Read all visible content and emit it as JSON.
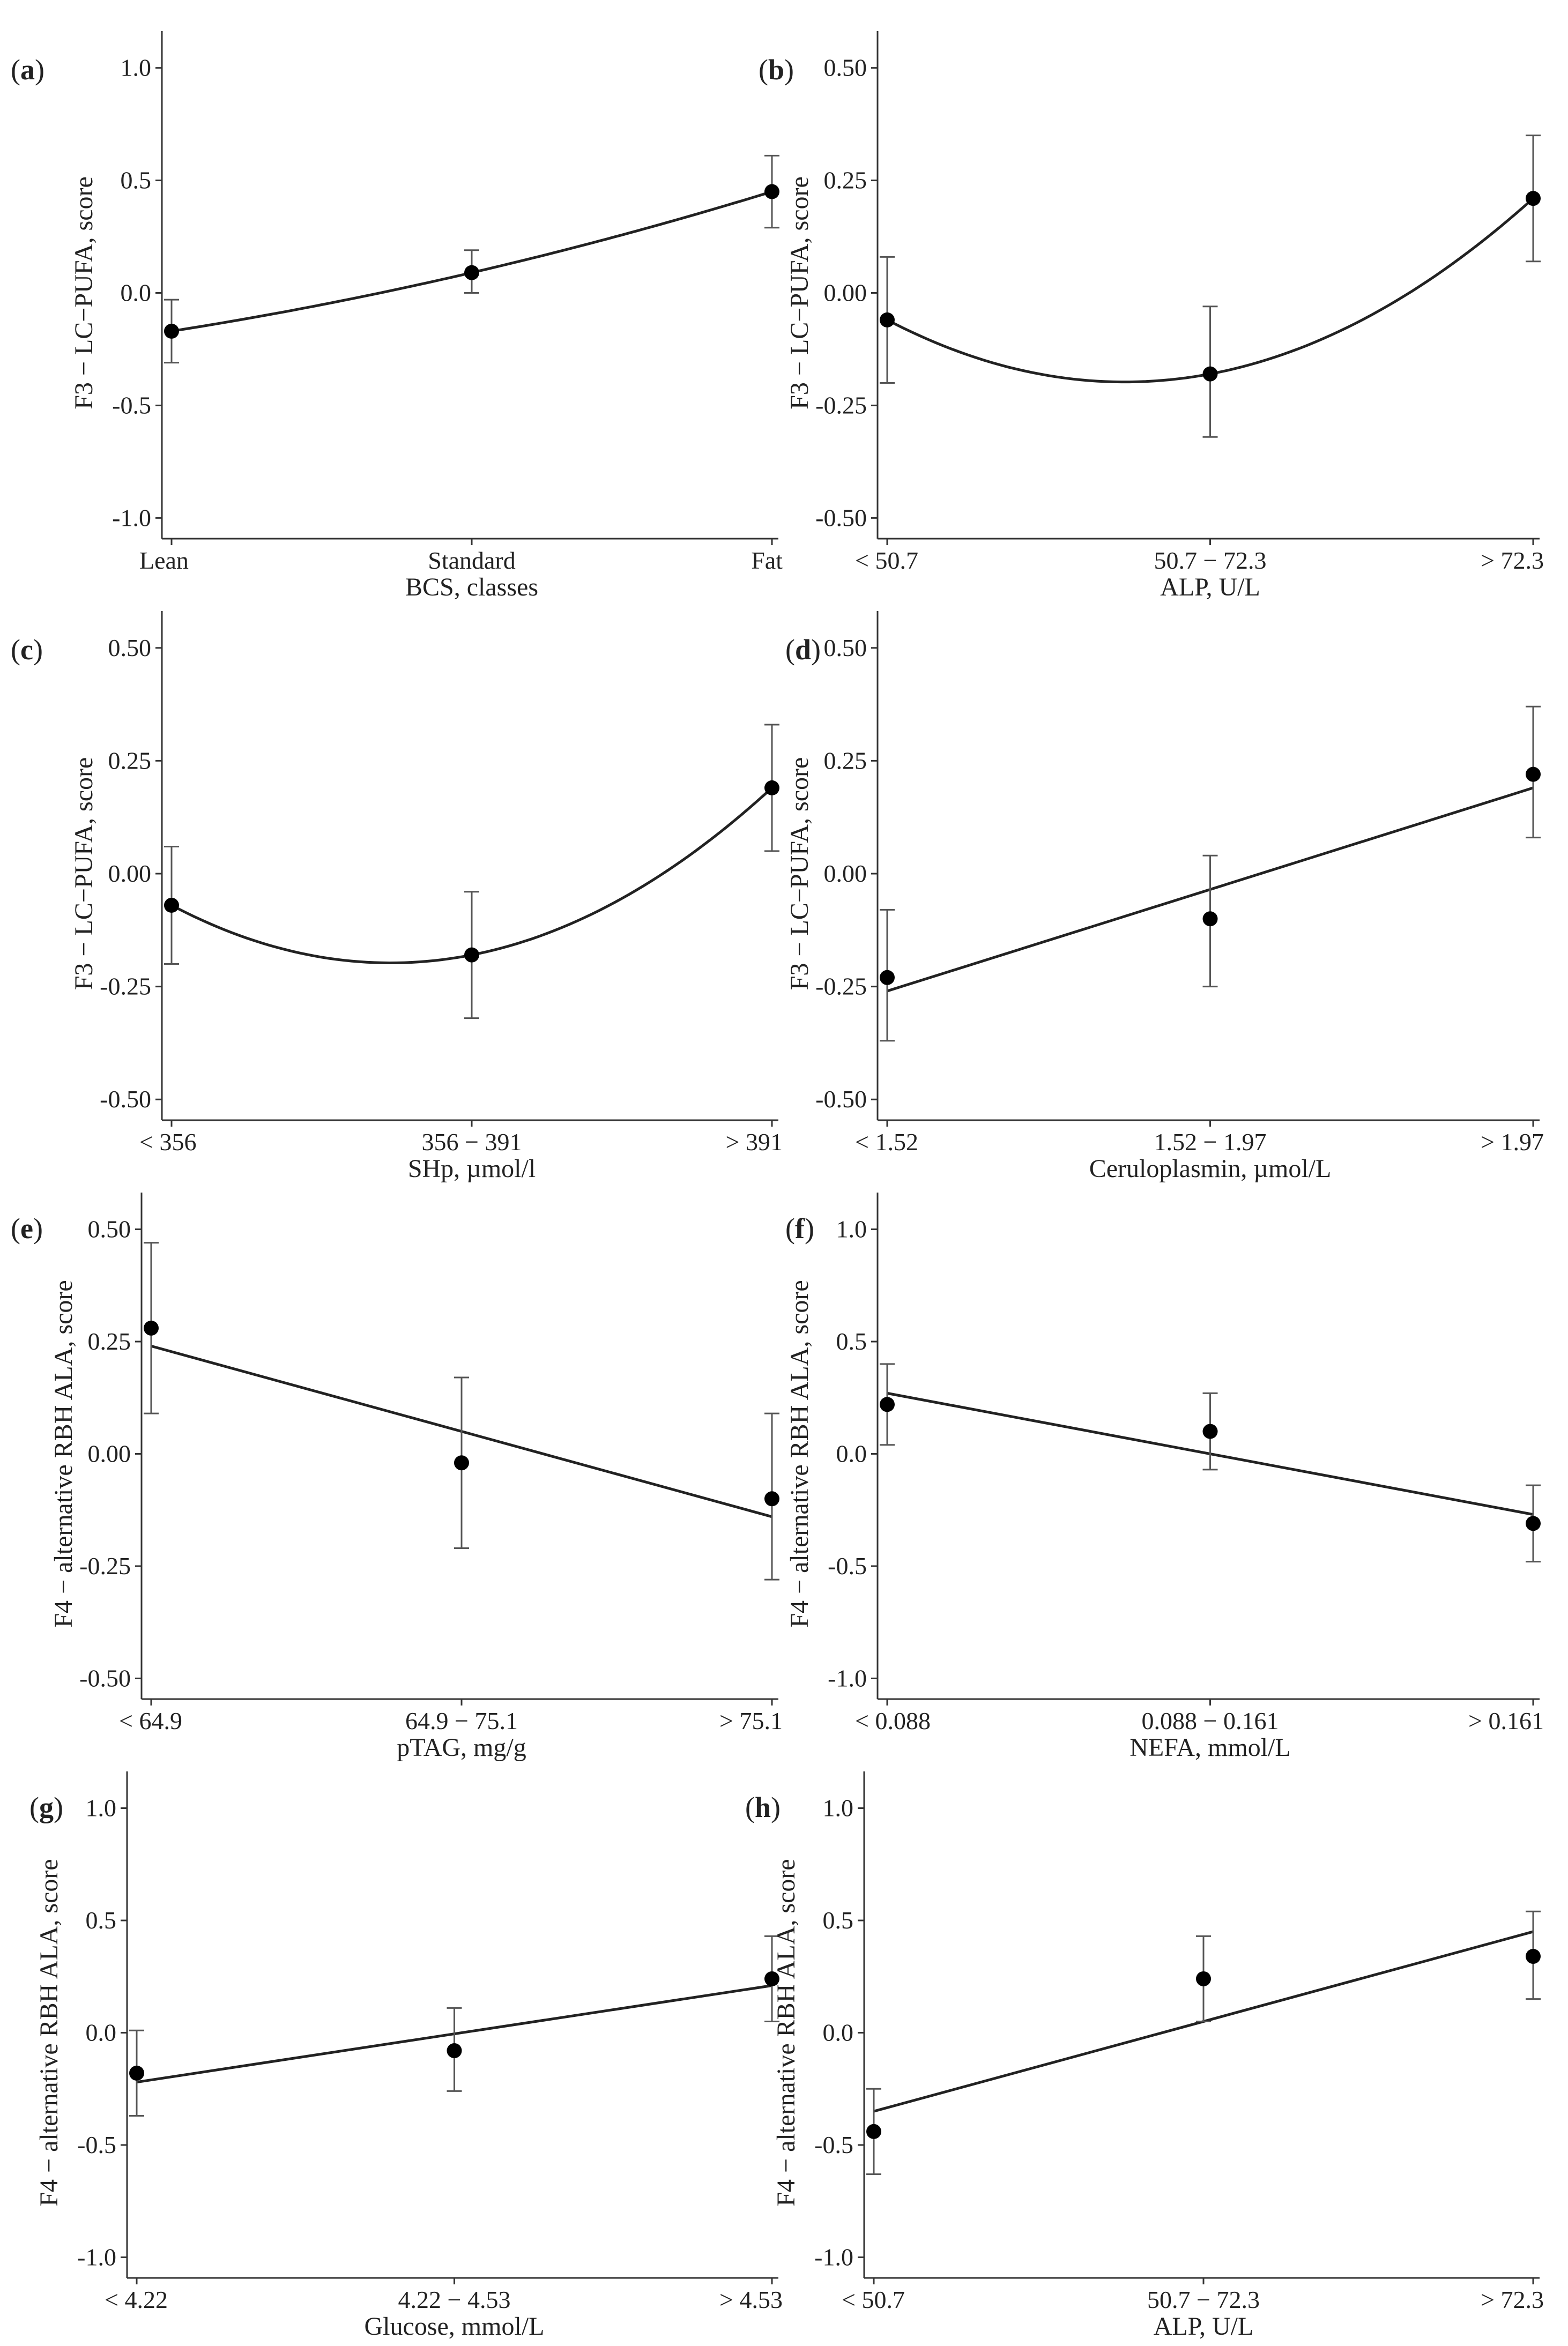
{
  "chart_data": [
    {
      "id": "a",
      "letter": "a",
      "type": "scatter",
      "fit": "quadratic",
      "categories": [
        "Lean",
        "Standard",
        "Fat"
      ],
      "xlabel": "BCS, classes",
      "ylabel": "F3 − LC−PUFA, score",
      "ylim": [
        -1.0,
        1.0
      ],
      "yticks": [
        1.0,
        0.5,
        0.0,
        -0.5,
        -1.0
      ],
      "ytick_labels": [
        "1.0",
        "0.5",
        "0.0",
        "-0.5",
        "-1.0"
      ],
      "points": [
        {
          "y": -0.17,
          "lo": -0.31,
          "hi": -0.03
        },
        {
          "y": 0.09,
          "lo": 0.0,
          "hi": 0.19
        },
        {
          "y": 0.45,
          "lo": 0.29,
          "hi": 0.61
        }
      ]
    },
    {
      "id": "b",
      "letter": "b",
      "type": "scatter",
      "fit": "quadratic",
      "categories": [
        "< 50.7",
        "50.7 − 72.3",
        "> 72.3"
      ],
      "xlabel": "ALP, U/L",
      "ylabel": "F3 − LC−PUFA, score",
      "ylim": [
        -0.5,
        0.5
      ],
      "yticks": [
        0.5,
        0.25,
        0.0,
        -0.25,
        -0.5
      ],
      "ytick_labels": [
        "0.50",
        "0.25",
        "0.00",
        "-0.25",
        "-0.50"
      ],
      "points": [
        {
          "y": -0.06,
          "lo": -0.2,
          "hi": 0.08
        },
        {
          "y": -0.18,
          "lo": -0.32,
          "hi": -0.03
        },
        {
          "y": 0.21,
          "lo": 0.07,
          "hi": 0.35
        }
      ]
    },
    {
      "id": "c",
      "letter": "c",
      "type": "scatter",
      "fit": "quadratic",
      "categories": [
        "< 356",
        "356 − 391",
        "> 391"
      ],
      "xlabel": "SHp, µmol/l",
      "ylabel": "F3 − LC−PUFA, score",
      "ylim": [
        -0.5,
        0.5
      ],
      "yticks": [
        0.5,
        0.25,
        0.0,
        -0.25,
        -0.5
      ],
      "ytick_labels": [
        "0.50",
        "0.25",
        "0.00",
        "-0.25",
        "-0.50"
      ],
      "points": [
        {
          "y": -0.07,
          "lo": -0.2,
          "hi": 0.06
        },
        {
          "y": -0.18,
          "lo": -0.32,
          "hi": -0.04
        },
        {
          "y": 0.19,
          "lo": 0.05,
          "hi": 0.33
        }
      ]
    },
    {
      "id": "d",
      "letter": "d",
      "type": "scatter",
      "fit": "linear",
      "fit_ends": [
        -0.26,
        0.19
      ],
      "categories": [
        "< 1.52",
        "1.52 − 1.97",
        "> 1.97"
      ],
      "xlabel": "Ceruloplasmin, µmol/L",
      "ylabel": "F3 − LC−PUFA, score",
      "ylim": [
        -0.5,
        0.5
      ],
      "yticks": [
        0.5,
        0.25,
        0.0,
        -0.25,
        -0.5
      ],
      "ytick_labels": [
        "0.50",
        "0.25",
        "0.00",
        "-0.25",
        "-0.50"
      ],
      "points": [
        {
          "y": -0.23,
          "lo": -0.37,
          "hi": -0.08
        },
        {
          "y": -0.1,
          "lo": -0.25,
          "hi": 0.04
        },
        {
          "y": 0.22,
          "lo": 0.08,
          "hi": 0.37
        }
      ]
    },
    {
      "id": "e",
      "letter": "e",
      "type": "scatter",
      "fit": "linear",
      "fit_ends": [
        0.24,
        -0.14
      ],
      "categories": [
        "< 64.9",
        "64.9 − 75.1",
        "> 75.1"
      ],
      "xlabel": "pTAG, mg/g",
      "ylabel": "F4 − alternative RBH ALA, score",
      "ylim": [
        -0.5,
        0.5
      ],
      "yticks": [
        0.5,
        0.25,
        0.0,
        -0.25,
        -0.5
      ],
      "ytick_labels": [
        "0.50",
        "0.25",
        "0.00",
        "-0.25",
        "-0.50"
      ],
      "points": [
        {
          "y": 0.28,
          "lo": 0.09,
          "hi": 0.47
        },
        {
          "y": -0.02,
          "lo": -0.21,
          "hi": 0.17
        },
        {
          "y": -0.1,
          "lo": -0.28,
          "hi": 0.09
        }
      ]
    },
    {
      "id": "f",
      "letter": "f",
      "type": "scatter",
      "fit": "linear",
      "fit_ends": [
        0.27,
        -0.27
      ],
      "categories": [
        "< 0.088",
        "0.088 − 0.161",
        "> 0.161"
      ],
      "xlabel": "NEFA, mmol/L",
      "ylabel": "F4 − alternative RBH ALA, score",
      "ylim": [
        -1.0,
        1.0
      ],
      "yticks": [
        1.0,
        0.5,
        0.0,
        -0.5,
        -1.0
      ],
      "ytick_labels": [
        "1.0",
        "0.5",
        "0.0",
        "-0.5",
        "-1.0"
      ],
      "points": [
        {
          "y": 0.22,
          "lo": 0.04,
          "hi": 0.4
        },
        {
          "y": 0.1,
          "lo": -0.07,
          "hi": 0.27
        },
        {
          "y": -0.31,
          "lo": -0.48,
          "hi": -0.14
        }
      ]
    },
    {
      "id": "g",
      "letter": "g",
      "type": "scatter",
      "fit": "linear",
      "fit_ends": [
        -0.22,
        0.21
      ],
      "categories": [
        "< 4.22",
        "4.22 − 4.53",
        "> 4.53"
      ],
      "xlabel": "Glucose, mmol/L",
      "ylabel": "F4 − alternative RBH ALA, score",
      "ylim": [
        -1.0,
        1.0
      ],
      "yticks": [
        1.0,
        0.5,
        0.0,
        -0.5,
        -1.0
      ],
      "ytick_labels": [
        "1.0",
        "0.5",
        "0.0",
        "-0.5",
        "-1.0"
      ],
      "points": [
        {
          "y": -0.18,
          "lo": -0.37,
          "hi": 0.01
        },
        {
          "y": -0.08,
          "lo": -0.26,
          "hi": 0.11
        },
        {
          "y": 0.24,
          "lo": 0.05,
          "hi": 0.43
        }
      ]
    },
    {
      "id": "h",
      "letter": "h",
      "type": "scatter",
      "fit": "linear",
      "fit_ends": [
        -0.35,
        0.45
      ],
      "categories": [
        "< 50.7",
        "50.7 − 72.3",
        "> 72.3"
      ],
      "xlabel": "ALP, U/L",
      "ylabel": "F4 − alternative RBH ALA, score",
      "ylim": [
        -1.0,
        1.0
      ],
      "yticks": [
        1.0,
        0.5,
        0.0,
        -0.5,
        -1.0
      ],
      "ytick_labels": [
        "1.0",
        "0.5",
        "0.0",
        "-0.5",
        "-1.0"
      ],
      "points": [
        {
          "y": -0.44,
          "lo": -0.63,
          "hi": -0.25
        },
        {
          "y": 0.24,
          "lo": 0.05,
          "hi": 0.43
        },
        {
          "y": 0.34,
          "lo": 0.15,
          "hi": 0.54
        }
      ]
    }
  ]
}
